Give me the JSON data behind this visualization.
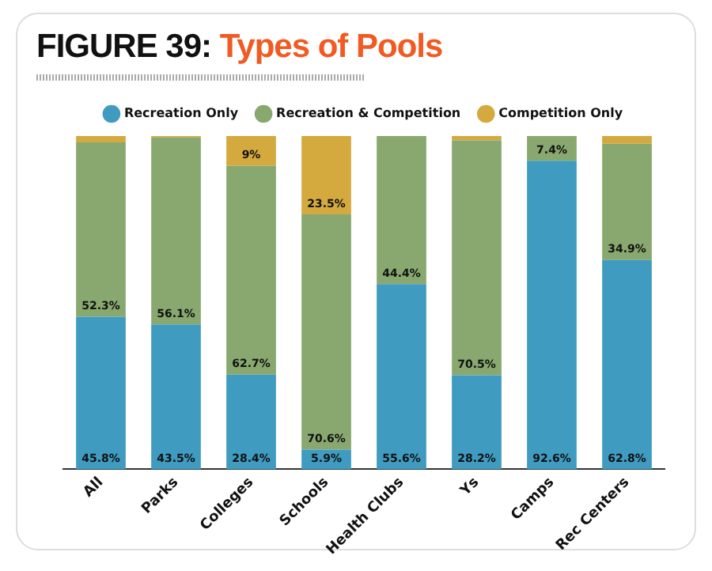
{
  "chart_data": {
    "type": "bar",
    "title": "FIGURE 39: Types of Pools",
    "categories": [
      "All",
      "Parks",
      "Colleges",
      "Schools",
      "Health Clubs",
      "Ys",
      "Camps",
      "Rec Centers"
    ],
    "stacked": true,
    "ylim": [
      0,
      100
    ],
    "tick_labels": "x",
    "grid": false,
    "legend": "top",
    "series": [
      {
        "name": "Recreation Only",
        "color": "#3f9bbf",
        "values": [
          45.8,
          43.5,
          28.4,
          5.9,
          55.6,
          28.2,
          92.6,
          62.8
        ],
        "value_labels": [
          "45.8%",
          "43.5%",
          "28.4%",
          "5.9%",
          "55.6%",
          "28.2%",
          "92.6%",
          "62.8%"
        ]
      },
      {
        "name": "Recreation & Competition",
        "color": "#88a86f",
        "values": [
          52.3,
          56.1,
          62.7,
          70.6,
          44.4,
          70.5,
          7.4,
          34.9
        ],
        "value_labels": [
          "52.3%",
          "56.1%",
          "62.7%",
          "70.6%",
          "44.4%",
          "70.5%",
          "7.4%",
          "34.9%"
        ]
      },
      {
        "name": "Competition Only",
        "color": "#d4aa3f",
        "values": [
          1.9,
          0.4,
          9,
          23.5,
          0,
          1.3,
          0,
          2.3
        ],
        "value_labels": [
          null,
          null,
          "9%",
          "23.5%",
          null,
          null,
          null,
          null
        ]
      }
    ]
  }
}
